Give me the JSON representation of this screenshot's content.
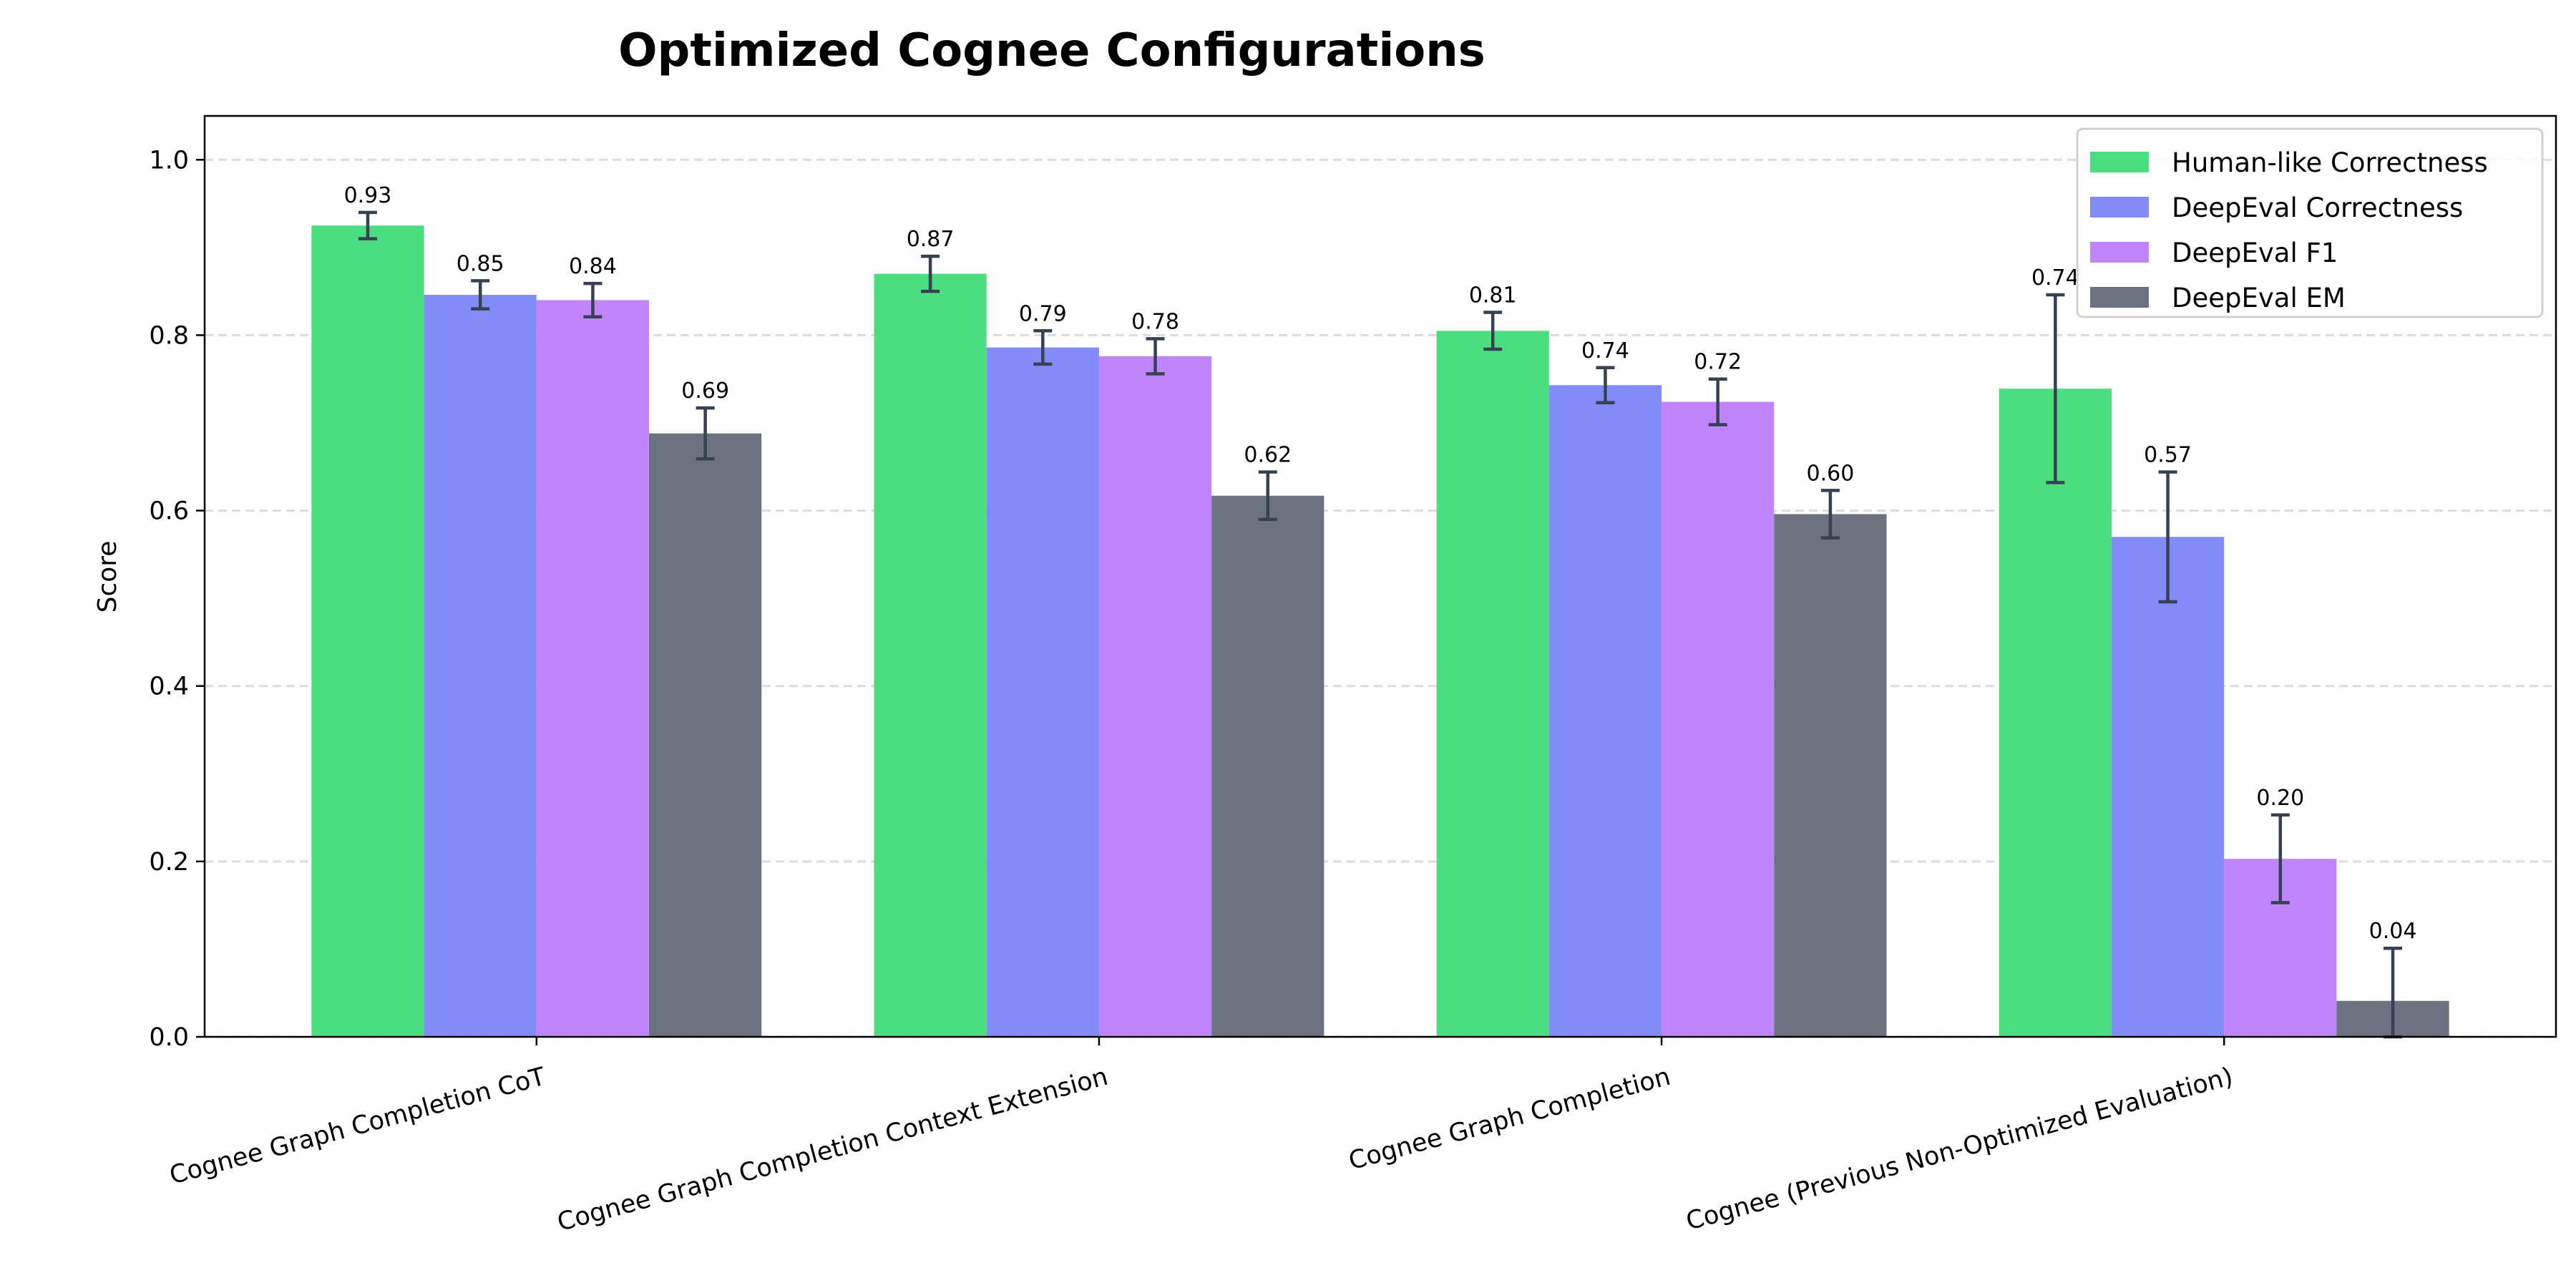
{
  "chart_data": {
    "type": "bar",
    "title": "Optimized Cognee Configurations",
    "xlabel": "",
    "ylabel": "Score",
    "ylim": [
      0,
      1.05
    ],
    "yticks": [
      "0.0",
      "0.2",
      "0.4",
      "0.6",
      "0.8",
      "1.0"
    ],
    "grid": "y-dashed",
    "legend_position": "top-right",
    "categories": [
      "Cognee Graph Completion CoT",
      "Cognee Graph Completion Context Extension",
      "Cognee Graph Completion",
      "Cognee (Previous Non-Optimized Evaluation)"
    ],
    "series": [
      {
        "name": "Human-like Correctness",
        "color": "#4ade80",
        "values": [
          0.925,
          0.87,
          0.805,
          0.739
        ],
        "errors": [
          0.015,
          0.02,
          0.021,
          0.107
        ],
        "labels": [
          "0.93",
          "0.87",
          "0.81",
          "0.74"
        ]
      },
      {
        "name": "DeepEval Correctness",
        "color": "#818cf8",
        "values": [
          0.846,
          0.786,
          0.743,
          0.57
        ],
        "errors": [
          0.016,
          0.019,
          0.02,
          0.074
        ],
        "labels": [
          "0.85",
          "0.79",
          "0.74",
          "0.57"
        ]
      },
      {
        "name": "DeepEval F1",
        "color": "#c084fc",
        "values": [
          0.84,
          0.776,
          0.724,
          0.203
        ],
        "errors": [
          0.019,
          0.02,
          0.026,
          0.05
        ],
        "labels": [
          "0.84",
          "0.78",
          "0.72",
          "0.20"
        ]
      },
      {
        "name": "DeepEval EM",
        "color": "#6b7280",
        "values": [
          0.688,
          0.617,
          0.596,
          0.041
        ],
        "errors": [
          0.029,
          0.027,
          0.027,
          0.06
        ],
        "labels": [
          "0.69",
          "0.62",
          "0.60",
          "0.04"
        ]
      }
    ],
    "error_bar_color": "#374151"
  }
}
